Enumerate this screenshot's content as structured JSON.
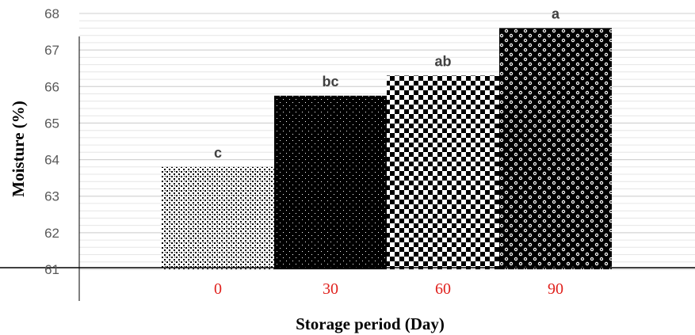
{
  "chart_data": {
    "type": "bar",
    "title": "",
    "xlabel": "Storage period (Day)",
    "ylabel": "Moisture (%)",
    "categories": [
      "0",
      "30",
      "60",
      "90"
    ],
    "values": [
      63.8,
      65.75,
      66.3,
      67.6
    ],
    "data_labels": [
      "c",
      "bc",
      "ab",
      "a"
    ],
    "ylim": [
      61,
      68
    ],
    "yticks": [
      "61",
      "62",
      "63",
      "64",
      "65",
      "66",
      "67",
      "68"
    ],
    "grid": true,
    "legend": "none",
    "category_label_color": "#e0201c",
    "bar_patterns": [
      "dotted-dense",
      "black-white-dots",
      "checker-small",
      "checker-circles"
    ]
  }
}
